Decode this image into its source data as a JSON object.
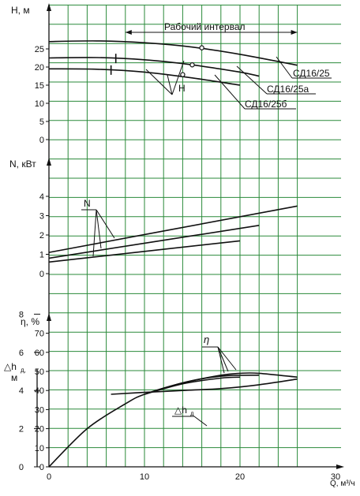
{
  "colors": {
    "grid": "#2a8a3a",
    "ink": "#111111",
    "background": "#ffffff"
  },
  "chart_data": {
    "type": "line",
    "grid": true,
    "x_axis": {
      "label": "Q, м³/ч",
      "range": [
        0,
        30
      ],
      "ticks": [
        0,
        10,
        20,
        30
      ],
      "tick_labels": [
        "0",
        "10",
        "20",
        "30"
      ]
    },
    "panels": [
      {
        "id": "head",
        "ylabel": "H, м",
        "y_range": [
          0,
          30
        ],
        "y_ticks": [
          0,
          5,
          10,
          15,
          20,
          25
        ],
        "y_tick_labels": [
          "0",
          "5",
          "10",
          "15",
          "20",
          "25"
        ],
        "series": [
          {
            "name": "СД16/25",
            "x": [
              0,
              5,
              10,
              15,
              20,
              26
            ],
            "y": [
              27,
              27.2,
              26.7,
              25.5,
              23.5,
              20.5
            ]
          },
          {
            "name": "СД16/25а",
            "x": [
              0,
              5,
              10,
              15,
              20,
              22
            ],
            "y": [
              22.5,
              22.6,
              22,
              20.6,
              18.6,
              17.5
            ]
          },
          {
            "name": "СД16/25б",
            "x": [
              0,
              5,
              10,
              15,
              20
            ],
            "y": [
              19.5,
              19.4,
              18.6,
              17,
              15
            ]
          }
        ],
        "working_range": {
          "label": "Рабочий интервал",
          "x": [
            8,
            26
          ]
        },
        "range_marks": [
          {
            "series": "СД16/25а",
            "x": 7
          },
          {
            "series": "СД16/25б",
            "x": 6.5
          }
        ],
        "nominal_points": [
          {
            "series": "СД16/25",
            "x": 16,
            "y": 25.3
          },
          {
            "series": "СД16/25а",
            "x": 15,
            "y": 20.6
          },
          {
            "series": "СД16/25б",
            "x": 14,
            "y": 17.9
          }
        ],
        "annotation": "H"
      },
      {
        "id": "power",
        "ylabel": "N, кВт",
        "y_range": [
          0,
          6
        ],
        "y_ticks": [
          0,
          1,
          2,
          3,
          4
        ],
        "y_tick_labels": [
          "0",
          "1",
          "2",
          "3",
          "4"
        ],
        "series": [
          {
            "x": [
              0,
              26
            ],
            "y": [
              1.1,
              3.5
            ]
          },
          {
            "x": [
              0,
              22
            ],
            "y": [
              0.8,
              2.5
            ]
          },
          {
            "x": [
              0,
              20
            ],
            "y": [
              0.6,
              1.7
            ]
          }
        ],
        "annotation": "N"
      },
      {
        "id": "efficiency",
        "ylabel": "η, %",
        "y_range": [
          0,
          80
        ],
        "y_ticks": [
          0,
          10,
          20,
          30,
          40,
          50,
          60,
          70
        ],
        "y_tick_labels": [
          "0",
          "10",
          "20",
          "30",
          "40",
          "50",
          "60",
          "70"
        ],
        "secondary_axis": {
          "label_main": "△h",
          "label_sub": "д,",
          "unit": "м",
          "y_range": [
            0,
            10
          ],
          "y_ticks": [
            0,
            2,
            4,
            6,
            8
          ],
          "y_tick_labels": [
            "0",
            "2",
            "4",
            "6",
            "8"
          ]
        },
        "series": [
          {
            "x": [
              0,
              4,
              8,
              10,
              14,
              18,
              20,
              22,
              26
            ],
            "y": [
              0,
              20,
              33,
              38,
              44,
              48,
              49,
              49,
              47
            ]
          },
          {
            "x": [
              10,
              14,
              18,
              22
            ],
            "y": [
              38,
              44,
              47.5,
              48
            ]
          },
          {
            "x": [
              10,
              14,
              18,
              20
            ],
            "y": [
              38,
              43.5,
              46.5,
              47
            ]
          },
          {
            "name": "△hд",
            "axis": "secondary",
            "x": [
              6.5,
              10,
              14,
              18,
              22,
              26
            ],
            "y": [
              3.8,
              3.9,
              4.0,
              4.1,
              4.3,
              4.6
            ]
          }
        ],
        "annotations": [
          "η",
          "△hд"
        ]
      }
    ]
  }
}
